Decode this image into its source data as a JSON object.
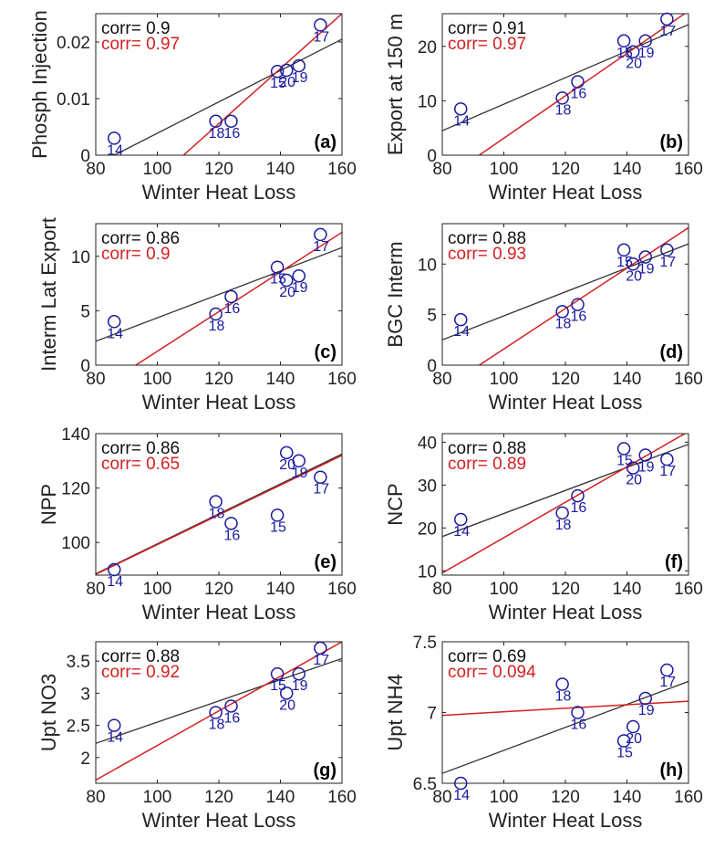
{
  "figure": {
    "marker_color": "#1a1aa0",
    "fit_black_color": "#333333",
    "fit_red_color": "#d42020"
  },
  "chart_data": [
    {
      "type": "scatter",
      "panel": "(a)",
      "xlabel": "Winter Heat Loss",
      "ylabel": "Phosph Injection",
      "xlim": [
        80,
        160
      ],
      "ylim": [
        0,
        0.025
      ],
      "xticks": [
        "80",
        "100",
        "120",
        "140",
        "160"
      ],
      "yticks": [
        {
          "v": 0,
          "t": "0"
        },
        {
          "v": 0.01,
          "t": "0.01"
        },
        {
          "v": 0.02,
          "t": "0.02"
        }
      ],
      "corr_black": "corr= 0.9",
      "corr_red": "corr= 0.97",
      "points": [
        {
          "label": "14",
          "x": 86,
          "y": 0.003
        },
        {
          "label": "18",
          "x": 119,
          "y": 0.006
        },
        {
          "label": "16",
          "x": 124,
          "y": 0.006
        },
        {
          "label": "15",
          "x": 139,
          "y": 0.0148
        },
        {
          "label": "20",
          "x": 142,
          "y": 0.015
        },
        {
          "label": "19",
          "x": 146,
          "y": 0.0158
        },
        {
          "label": "17",
          "x": 153,
          "y": 0.023
        }
      ],
      "fit_black": [
        [
          86,
          0
        ],
        [
          160,
          0.0205
        ]
      ],
      "fit_red": [
        [
          108.5,
          0
        ],
        [
          160,
          0.025
        ]
      ]
    },
    {
      "type": "scatter",
      "panel": "(b)",
      "xlabel": "Winter Heat Loss",
      "ylabel": "Export at 150 m",
      "xlim": [
        80,
        160
      ],
      "ylim": [
        0,
        26
      ],
      "xticks": [
        "80",
        "100",
        "120",
        "140",
        "160"
      ],
      "yticks": [
        {
          "v": 0,
          "t": "0"
        },
        {
          "v": 10,
          "t": "10"
        },
        {
          "v": 20,
          "t": "20"
        }
      ],
      "corr_black": "corr= 0.91",
      "corr_red": "corr= 0.97",
      "points": [
        {
          "label": "14",
          "x": 86,
          "y": 8.5
        },
        {
          "label": "18",
          "x": 119,
          "y": 10.5
        },
        {
          "label": "16",
          "x": 124,
          "y": 13.5
        },
        {
          "label": "15",
          "x": 139,
          "y": 21
        },
        {
          "label": "20",
          "x": 142,
          "y": 19
        },
        {
          "label": "19",
          "x": 146,
          "y": 21
        },
        {
          "label": "17",
          "x": 153,
          "y": 25
        }
      ],
      "fit_black": [
        [
          80,
          4.5
        ],
        [
          160,
          24
        ]
      ],
      "fit_red": [
        [
          92,
          0
        ],
        [
          160,
          26.5
        ]
      ]
    },
    {
      "type": "scatter",
      "panel": "(c)",
      "xlabel": "Winter Heat Loss",
      "ylabel": "Interm Lat Export",
      "xlim": [
        80,
        160
      ],
      "ylim": [
        0,
        13
      ],
      "xticks": [
        "80",
        "100",
        "120",
        "140",
        "160"
      ],
      "yticks": [
        {
          "v": 0,
          "t": "0"
        },
        {
          "v": 5,
          "t": "5"
        },
        {
          "v": 10,
          "t": "10"
        }
      ],
      "corr_black": "corr= 0.86",
      "corr_red": "corr= 0.9",
      "points": [
        {
          "label": "14",
          "x": 86,
          "y": 4
        },
        {
          "label": "18",
          "x": 119,
          "y": 4.7
        },
        {
          "label": "16",
          "x": 124,
          "y": 6.3
        },
        {
          "label": "15",
          "x": 139,
          "y": 9
        },
        {
          "label": "20",
          "x": 142,
          "y": 7.8
        },
        {
          "label": "19",
          "x": 146,
          "y": 8.2
        },
        {
          "label": "17",
          "x": 153,
          "y": 12
        }
      ],
      "fit_black": [
        [
          80,
          2.2
        ],
        [
          160,
          10.8
        ]
      ],
      "fit_red": [
        [
          93,
          0
        ],
        [
          160,
          12.2
        ]
      ]
    },
    {
      "type": "scatter",
      "panel": "(d)",
      "xlabel": "Winter Heat Loss",
      "ylabel": "BGC Interm",
      "xlim": [
        80,
        160
      ],
      "ylim": [
        0,
        14
      ],
      "xticks": [
        "80",
        "100",
        "120",
        "140",
        "160"
      ],
      "yticks": [
        {
          "v": 0,
          "t": "0"
        },
        {
          "v": 5,
          "t": "5"
        },
        {
          "v": 10,
          "t": "10"
        }
      ],
      "corr_black": "corr= 0.88",
      "corr_red": "corr= 0.93",
      "points": [
        {
          "label": "14",
          "x": 86,
          "y": 4.5
        },
        {
          "label": "18",
          "x": 119,
          "y": 5.3
        },
        {
          "label": "16",
          "x": 124,
          "y": 6
        },
        {
          "label": "15",
          "x": 139,
          "y": 11.4
        },
        {
          "label": "20",
          "x": 142,
          "y": 10
        },
        {
          "label": "19",
          "x": 146,
          "y": 10.7
        },
        {
          "label": "17",
          "x": 153,
          "y": 11.4
        }
      ],
      "fit_black": [
        [
          80,
          2.5
        ],
        [
          160,
          12
        ]
      ],
      "fit_red": [
        [
          92,
          0
        ],
        [
          160,
          13.6
        ]
      ]
    },
    {
      "type": "scatter",
      "panel": "(e)",
      "xlabel": "Winter Heat Loss",
      "ylabel": "NPP",
      "xlim": [
        80,
        160
      ],
      "ylim": [
        88,
        140
      ],
      "xticks": [
        "80",
        "100",
        "120",
        "140",
        "160"
      ],
      "yticks": [
        {
          "v": 100,
          "t": "100"
        },
        {
          "v": 120,
          "t": "120"
        },
        {
          "v": 140,
          "t": "140"
        }
      ],
      "corr_black": "corr= 0.86",
      "corr_red": "corr= 0.65",
      "points": [
        {
          "label": "14",
          "x": 86,
          "y": 90
        },
        {
          "label": "18",
          "x": 119,
          "y": 115
        },
        {
          "label": "16",
          "x": 124,
          "y": 107
        },
        {
          "label": "15",
          "x": 139,
          "y": 110
        },
        {
          "label": "20",
          "x": 142,
          "y": 133
        },
        {
          "label": "19",
          "x": 146,
          "y": 130
        },
        {
          "label": "17",
          "x": 153,
          "y": 124
        }
      ],
      "fit_black": [
        [
          80,
          88.5
        ],
        [
          160,
          132.5
        ]
      ],
      "fit_red": [
        [
          80,
          88.3
        ],
        [
          160,
          132
        ]
      ]
    },
    {
      "type": "scatter",
      "panel": "(f)",
      "xlabel": "Winter Heat Loss",
      "ylabel": "NCP",
      "xlim": [
        80,
        160
      ],
      "ylim": [
        9,
        42
      ],
      "xticks": [
        "80",
        "100",
        "120",
        "140",
        "160"
      ],
      "yticks": [
        {
          "v": 10,
          "t": "10"
        },
        {
          "v": 20,
          "t": "20"
        },
        {
          "v": 30,
          "t": "30"
        },
        {
          "v": 40,
          "t": "40"
        }
      ],
      "corr_black": "corr= 0.88",
      "corr_red": "corr= 0.89",
      "points": [
        {
          "label": "14",
          "x": 86,
          "y": 22
        },
        {
          "label": "18",
          "x": 119,
          "y": 23.5
        },
        {
          "label": "16",
          "x": 124,
          "y": 27.5
        },
        {
          "label": "15",
          "x": 139,
          "y": 38.5
        },
        {
          "label": "20",
          "x": 142,
          "y": 34
        },
        {
          "label": "19",
          "x": 146,
          "y": 37
        },
        {
          "label": "17",
          "x": 153,
          "y": 36
        }
      ],
      "fit_black": [
        [
          80,
          18
        ],
        [
          160,
          39.5
        ]
      ],
      "fit_red": [
        [
          80,
          9.5
        ],
        [
          160,
          42.5
        ]
      ]
    },
    {
      "type": "scatter",
      "panel": "(g)",
      "xlabel": "Winter Heat Loss",
      "ylabel": "Upt NO3",
      "xlim": [
        80,
        160
      ],
      "ylim": [
        1.6,
        3.8
      ],
      "xticks": [
        "80",
        "100",
        "120",
        "140",
        "160"
      ],
      "yticks": [
        {
          "v": 2,
          "t": "2"
        },
        {
          "v": 2.5,
          "t": "2.5"
        },
        {
          "v": 3,
          "t": "3"
        },
        {
          "v": 3.5,
          "t": "3.5"
        }
      ],
      "corr_black": "corr= 0.88",
      "corr_red": "corr= 0.92",
      "points": [
        {
          "label": "14",
          "x": 86,
          "y": 2.5
        },
        {
          "label": "18",
          "x": 119,
          "y": 2.7
        },
        {
          "label": "16",
          "x": 124,
          "y": 2.8
        },
        {
          "label": "15",
          "x": 139,
          "y": 3.3
        },
        {
          "label": "20",
          "x": 142,
          "y": 3.0
        },
        {
          "label": "19",
          "x": 146,
          "y": 3.3
        },
        {
          "label": "17",
          "x": 153,
          "y": 3.7
        }
      ],
      "fit_black": [
        [
          80,
          2.22
        ],
        [
          160,
          3.54
        ]
      ],
      "fit_red": [
        [
          80,
          1.65
        ],
        [
          160,
          3.8
        ]
      ]
    },
    {
      "type": "scatter",
      "panel": "(h)",
      "xlabel": "Winter Heat Loss",
      "ylabel": "Upt NH4",
      "xlim": [
        80,
        160
      ],
      "ylim": [
        6.5,
        7.5
      ],
      "xticks": [
        "80",
        "100",
        "120",
        "140",
        "160"
      ],
      "yticks": [
        {
          "v": 6.5,
          "t": "6.5"
        },
        {
          "v": 7,
          "t": "7"
        },
        {
          "v": 7.5,
          "t": "7.5"
        }
      ],
      "corr_black": "corr= 0.69",
      "corr_red": "corr= 0.094",
      "points": [
        {
          "label": "14",
          "x": 86,
          "y": 6.5
        },
        {
          "label": "18",
          "x": 119,
          "y": 7.2
        },
        {
          "label": "16",
          "x": 124,
          "y": 7.0
        },
        {
          "label": "15",
          "x": 139,
          "y": 6.8
        },
        {
          "label": "20",
          "x": 142,
          "y": 6.9
        },
        {
          "label": "19",
          "x": 146,
          "y": 7.1
        },
        {
          "label": "17",
          "x": 153,
          "y": 7.3
        }
      ],
      "fit_black": [
        [
          80,
          6.57
        ],
        [
          160,
          7.22
        ]
      ],
      "fit_red": [
        [
          80,
          6.98
        ],
        [
          160,
          7.08
        ]
      ]
    }
  ]
}
